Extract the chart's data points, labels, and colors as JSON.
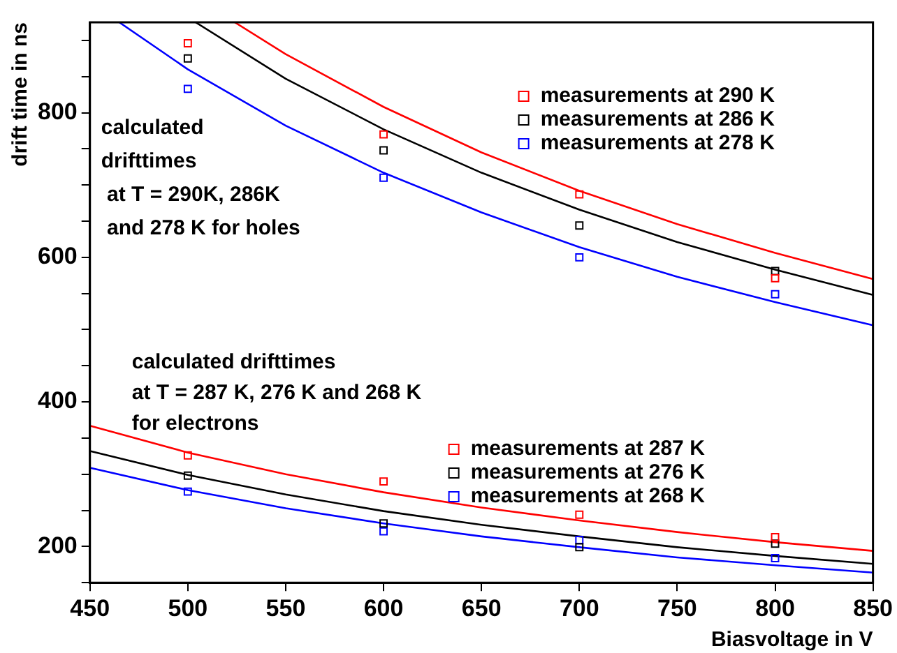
{
  "chart_data": {
    "type": "scatter",
    "xlabel": "Biasvoltage in V",
    "ylabel": "drift time in ns",
    "xlim": [
      450,
      850
    ],
    "xticks": [
      450,
      500,
      550,
      600,
      650,
      700,
      750,
      800,
      850
    ],
    "ylim": [
      150,
      925
    ],
    "yticks": [
      {
        "value": 150,
        "label": null
      },
      200,
      {
        "value": 250,
        "label": null
      },
      {
        "value": 300,
        "label": null
      },
      {
        "value": 350,
        "label": null
      },
      400,
      {
        "value": 450,
        "label": null
      },
      {
        "value": 500,
        "label": null
      },
      {
        "value": 550,
        "label": null
      },
      600,
      {
        "value": 650,
        "label": null
      },
      {
        "value": 700,
        "label": null
      },
      {
        "value": 750,
        "label": null
      },
      800,
      {
        "value": 850,
        "label": null
      },
      {
        "value": 900,
        "label": null
      }
    ],
    "grid": false,
    "legend": "top right",
    "marker": "square",
    "annotations": [
      "calculated\ndrifttimes\n at T = 290K, 286K\n and 278 K for holes",
      "calculated drifttimes\nat T = 287 K, 276 K and 268 K\nfor electrons"
    ],
    "series": [
      {
        "name": "measurements at 290 K",
        "color": "#ff0000",
        "x": [
          500,
          600,
          700,
          800
        ],
        "values": [
          896,
          770,
          687,
          571
        ]
      },
      {
        "name": "measurements at 286 K",
        "color": "#000000",
        "x": [
          500,
          600,
          700,
          800
        ],
        "values": [
          875,
          748,
          644,
          581
        ]
      },
      {
        "name": "measurements at 278 K",
        "color": "#0000ff",
        "x": [
          500,
          600,
          700,
          800
        ],
        "values": [
          833,
          710,
          600,
          549
        ]
      },
      {
        "name": "measurements at 287 K",
        "color": "#ff0000",
        "x": [
          500,
          600,
          700,
          800
        ],
        "values": [
          326,
          290,
          244,
          213
        ]
      },
      {
        "name": "measurements at 276 K",
        "color": "#000000",
        "x": [
          500,
          600,
          700,
          800
        ],
        "values": [
          298,
          232,
          199,
          204
        ]
      },
      {
        "name": "measurements at 268 K",
        "color": "#0000ff",
        "x": [
          500,
          600,
          700,
          800
        ],
        "values": [
          276,
          221,
          209,
          184
        ]
      },
      {
        "type": "line",
        "marker": "none",
        "color": "#ff0000",
        "x": [
          524,
          550,
          600,
          650,
          700,
          750,
          800,
          850
        ],
        "values": [
          925,
          881,
          808,
          745,
          692,
          646,
          606,
          570
        ]
      },
      {
        "type": "line",
        "marker": "none",
        "color": "#000000",
        "x": [
          504,
          550,
          600,
          650,
          700,
          750,
          800,
          850
        ],
        "values": [
          925,
          847,
          777,
          717,
          666,
          621,
          583,
          548
        ]
      },
      {
        "type": "line",
        "marker": "none",
        "color": "#0000ff",
        "x": [
          465,
          500,
          550,
          600,
          650,
          700,
          750,
          800,
          850
        ],
        "values": [
          925,
          860,
          782,
          717,
          662,
          614,
          573,
          538,
          506
        ]
      },
      {
        "type": "line",
        "marker": "none",
        "color": "#ff0000",
        "x": [
          450,
          500,
          550,
          600,
          650,
          700,
          750,
          800,
          850
        ],
        "values": [
          367,
          330,
          300,
          275,
          254,
          236,
          220,
          206,
          194
        ]
      },
      {
        "type": "line",
        "marker": "none",
        "color": "#000000",
        "x": [
          450,
          500,
          550,
          600,
          650,
          700,
          750,
          800,
          850
        ],
        "values": [
          332,
          299,
          272,
          249,
          230,
          214,
          199,
          187,
          176
        ]
      },
      {
        "type": "line",
        "marker": "none",
        "color": "#0000ff",
        "x": [
          450,
          500,
          550,
          600,
          650,
          700,
          750,
          800,
          850
        ],
        "values": [
          309,
          278,
          253,
          232,
          214,
          199,
          185,
          174,
          164
        ]
      }
    ]
  }
}
